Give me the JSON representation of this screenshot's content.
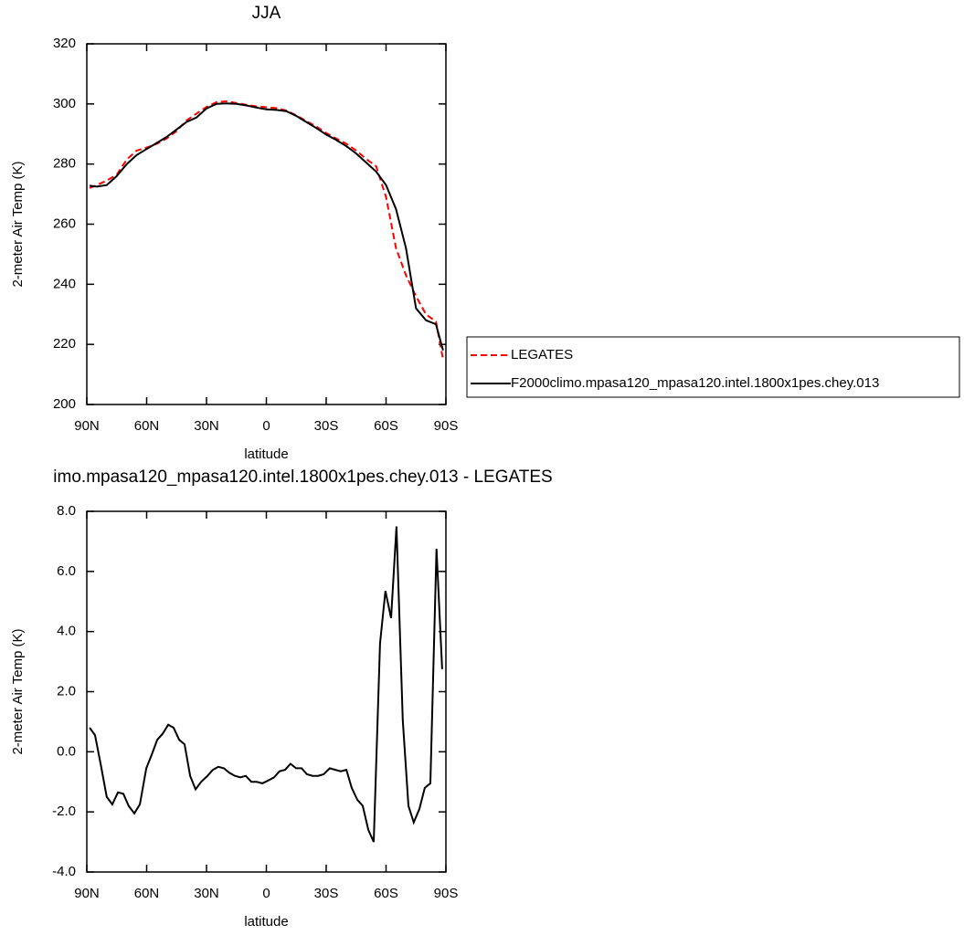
{
  "chart_data": [
    {
      "type": "line",
      "title": "JJA",
      "xlabel": "latitude",
      "ylabel": "2-meter Air Temp (K)",
      "x": [
        88.6,
        85,
        80,
        75,
        70,
        65,
        60,
        55,
        50,
        45,
        40,
        35,
        30,
        25,
        20,
        15,
        10,
        5,
        0,
        -5,
        -10,
        -15,
        -20,
        -25,
        -30,
        -35,
        -40,
        -45,
        -50,
        -55,
        -60,
        -65,
        -70,
        -75,
        -80,
        -85,
        -88.6
      ],
      "series": [
        {
          "name": "LEGATES",
          "color": "#ff0000",
          "dash": true,
          "values": [
            272,
            273,
            274.5,
            276.5,
            281.5,
            284.5,
            285.5,
            286.7,
            288.5,
            291,
            294.5,
            296.8,
            299,
            300.6,
            300.9,
            300.3,
            299.7,
            299.2,
            298.9,
            298.6,
            297.8,
            296.2,
            294.3,
            292.5,
            290.3,
            288.5,
            286.8,
            284.5,
            281.7,
            279.3,
            269,
            252,
            243,
            236,
            230,
            227.6,
            215
          ]
        },
        {
          "name": "F2000climo.mpasa120_mpasa120.intel.1800x1pes.chey.013",
          "color": "#000000",
          "dash": false,
          "values": [
            272.8,
            272.5,
            273,
            276,
            280,
            283,
            285,
            287,
            289,
            291.5,
            294,
            295.5,
            298.5,
            300,
            300.2,
            300,
            299.5,
            298.8,
            298.2,
            298,
            297.6,
            296,
            294,
            292,
            289.8,
            288,
            286,
            283.5,
            280.5,
            277.5,
            273,
            265,
            252,
            232,
            228,
            226.7,
            218
          ]
        }
      ],
      "xlim": [
        90,
        -90
      ],
      "ylim": [
        200,
        320
      ],
      "xticks": [
        {
          "value": 90,
          "label": "90N"
        },
        {
          "value": 60,
          "label": "60N"
        },
        {
          "value": 30,
          "label": "30N"
        },
        0,
        {
          "value": -30,
          "label": "30S"
        },
        {
          "value": -60,
          "label": "60S"
        },
        {
          "value": -90,
          "label": "90S"
        }
      ],
      "yticks": [
        200,
        220,
        240,
        260,
        280,
        300,
        320
      ],
      "legend": "right"
    },
    {
      "type": "line",
      "title": "imo.mpasa120_mpasa120.intel.1800x1pes.chey.013 - LEGATES",
      "xlabel": "latitude",
      "ylabel": "2-meter Air Temp (K)",
      "x": [
        88.6,
        85.9,
        83.1,
        80,
        77.2,
        74.4,
        71.7,
        69,
        66.2,
        63.4,
        60.2,
        57.5,
        54.7,
        52,
        49.2,
        46.5,
        43.7,
        41,
        38.2,
        35.5,
        32.7,
        29.5,
        26.8,
        24.1,
        21.3,
        18.5,
        15.8,
        13,
        10.3,
        7.5,
        4.8,
        2,
        -1.1,
        -3.9,
        -6.6,
        -9.4,
        -12.1,
        -14.9,
        -17.7,
        -20.4,
        -23.2,
        -25.9,
        -28.7,
        -31.8,
        -34.6,
        -37.3,
        -40.1,
        -42.8,
        -45.6,
        -48.3,
        -51.1,
        -53.8,
        -57,
        -59.7,
        -62.5,
        -65.2,
        -68.4,
        -71.2,
        -73.9,
        -76.7,
        -79.4,
        -82.2,
        -85.3,
        -88.1
      ],
      "series": [
        {
          "color": "#000000",
          "dash": false,
          "values": [
            0.8,
            0.55,
            -0.4,
            -1.5,
            -1.75,
            -1.35,
            -1.4,
            -1.8,
            -2.05,
            -1.75,
            -0.55,
            -0.1,
            0.4,
            0.6,
            0.9,
            0.8,
            0.4,
            0.25,
            -0.8,
            -1.25,
            -1,
            -0.8,
            -0.6,
            -0.5,
            -0.55,
            -0.7,
            -0.8,
            -0.85,
            -0.8,
            -1,
            -1,
            -1.05,
            -0.95,
            -0.85,
            -0.65,
            -0.6,
            -0.4,
            -0.55,
            -0.55,
            -0.75,
            -0.8,
            -0.8,
            -0.75,
            -0.55,
            -0.6,
            -0.65,
            -0.6,
            -1.2,
            -1.6,
            -1.8,
            -2.6,
            -3,
            3.6,
            5.35,
            4.45,
            7.5,
            1.05,
            -1.8,
            -2.35,
            -1.9,
            -1.2,
            -1.05,
            6.75,
            2.75
          ]
        }
      ],
      "xlim": [
        90,
        -90
      ],
      "ylim": [
        -4,
        8
      ],
      "xticks": [
        {
          "value": 90,
          "label": "90N"
        },
        {
          "value": 60,
          "label": "60N"
        },
        {
          "value": 30,
          "label": "30N"
        },
        0,
        {
          "value": -30,
          "label": "30S"
        },
        {
          "value": -60,
          "label": "60S"
        },
        {
          "value": -90,
          "label": "90S"
        }
      ],
      "yticks": [
        {
          "value": -4,
          "label": "-4.0"
        },
        {
          "value": -2,
          "label": "-2.0"
        },
        {
          "value": 0,
          "label": "0.0"
        },
        {
          "value": 2,
          "label": "2.0"
        },
        {
          "value": 4,
          "label": "4.0"
        },
        {
          "value": 6,
          "label": "6.0"
        },
        {
          "value": 8,
          "label": "8.0"
        }
      ]
    }
  ]
}
